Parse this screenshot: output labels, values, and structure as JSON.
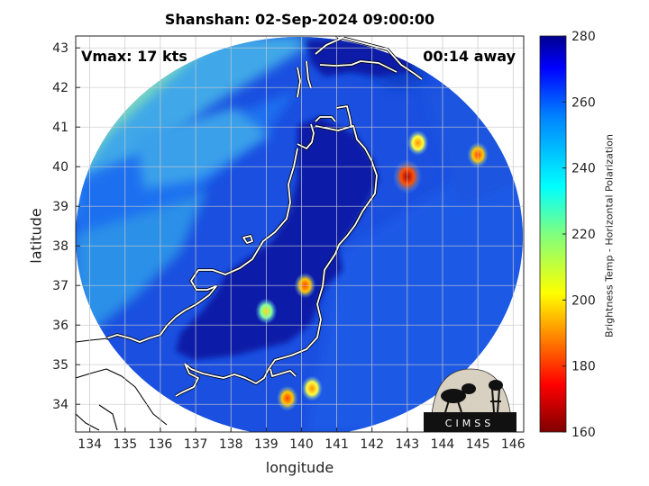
{
  "title": "Shanshan: 02-Sep-2024 09:00:00",
  "annotations": {
    "vmax": "Vmax: 17 kts",
    "away": "00:14 away"
  },
  "axes": {
    "xlabel": "longitude",
    "ylabel": "latitude",
    "xlim": [
      133.6,
      146.3
    ],
    "ylim": [
      33.3,
      43.3
    ],
    "xticks": [
      "134",
      "135",
      "136",
      "137",
      "138",
      "139",
      "140",
      "141",
      "142",
      "143",
      "144",
      "145",
      "146"
    ],
    "yticks": [
      "34",
      "35",
      "36",
      "37",
      "38",
      "39",
      "40",
      "41",
      "42",
      "43"
    ]
  },
  "colorbar": {
    "label": "Brightness Temp - Horizontal Polarization",
    "range": [
      160,
      280
    ],
    "ticks": [
      "160",
      "180",
      "200",
      "220",
      "240",
      "260",
      "280"
    ],
    "colormap": "jet"
  },
  "logo": {
    "text": "CIMSS"
  },
  "hot_spots": [
    {
      "lon": 143.3,
      "lat": 40.6,
      "value": 215
    },
    {
      "lon": 143.0,
      "lat": 39.75,
      "value": 175
    },
    {
      "lon": 145.0,
      "lat": 40.3,
      "value": 200
    },
    {
      "lon": 140.1,
      "lat": 37.0,
      "value": 205
    },
    {
      "lon": 139.6,
      "lat": 34.15,
      "value": 205
    },
    {
      "lon": 140.3,
      "lat": 34.4,
      "value": 215
    },
    {
      "lon": 139.0,
      "lat": 36.35,
      "value": 228
    }
  ],
  "colors": {
    "land_bg": "#0a1fa8",
    "coast": "#ffffff",
    "grid": "#c8c8c8"
  }
}
